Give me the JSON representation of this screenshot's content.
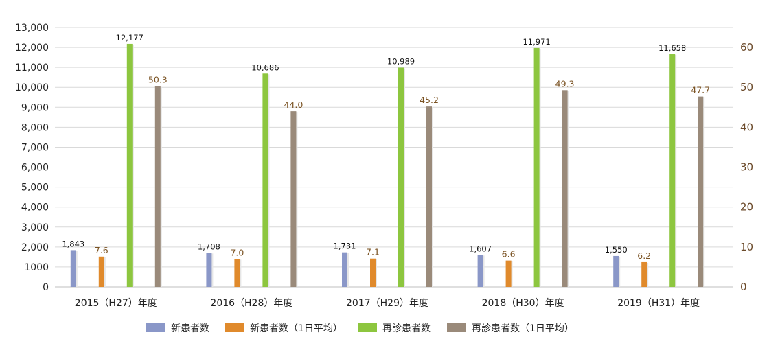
{
  "chart_data": {
    "type": "bar",
    "categories": [
      "2015（H27）年度",
      "2016（H28）年度",
      "2017（H29）年度",
      "2018（H30）年度",
      "2019（H31）年度"
    ],
    "series": [
      {
        "name": "新患者数",
        "axis": "left",
        "values": [
          1843,
          1708,
          1731,
          1607,
          1550
        ],
        "labels": [
          "1,843",
          "1,708",
          "1,731",
          "1,607",
          "1,550"
        ],
        "color": "#8a97c8"
      },
      {
        "name": "新患者数（1日平均）",
        "axis": "right",
        "values": [
          7.6,
          7.0,
          7.1,
          6.6,
          6.2
        ],
        "labels": [
          "7.6",
          "7.0",
          "7.1",
          "6.6",
          "6.2"
        ],
        "color": "#e08a2c"
      },
      {
        "name": "再診患者数",
        "axis": "left",
        "values": [
          12177,
          10686,
          10989,
          11971,
          11658
        ],
        "labels": [
          "12,177",
          "10,686",
          "10,989",
          "11,971",
          "11,658"
        ],
        "color": "#8dc63f"
      },
      {
        "name": "再診患者数（1日平均）",
        "axis": "right",
        "values": [
          50.3,
          44.0,
          45.2,
          49.3,
          47.7
        ],
        "labels": [
          "50.3",
          "44.0",
          "45.2",
          "49.3",
          "47.7"
        ],
        "color": "#9a8a7a"
      }
    ],
    "y_left": {
      "ylim": [
        0,
        13000
      ],
      "ticks": [
        0,
        1000,
        2000,
        3000,
        4000,
        5000,
        6000,
        7000,
        8000,
        9000,
        10000,
        11000,
        12000,
        13000
      ],
      "tick_labels": [
        "0",
        "1000",
        "2,000",
        "3,000",
        "4,000",
        "5,000",
        "6,000",
        "7,000",
        "8,000",
        "9,000",
        "10,000",
        "11,000",
        "12,000",
        "13,000"
      ]
    },
    "y_right": {
      "ylim": [
        0,
        65
      ],
      "ticks": [
        0,
        10,
        20,
        30,
        40,
        50,
        60
      ],
      "tick_labels": [
        "0",
        "10",
        "20",
        "30",
        "40",
        "50",
        "60"
      ]
    },
    "grid": true,
    "legend_position": "bottom-center"
  }
}
